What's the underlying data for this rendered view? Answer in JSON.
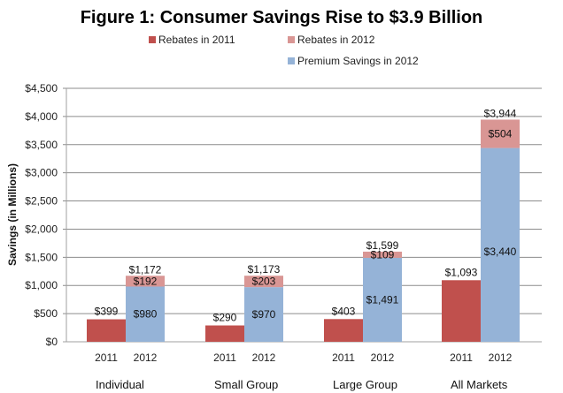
{
  "chart_data": {
    "type": "bar",
    "stacked": true,
    "title": "Figure 1: Consumer Savings Rise to $3.9 Billion",
    "xlabel": "",
    "ylabel": "Savings (in Millions)",
    "ylim": [
      0,
      4500
    ],
    "yticks": [
      0,
      500,
      1000,
      1500,
      2000,
      2500,
      3000,
      3500,
      4000,
      4500
    ],
    "ytick_labels": [
      "$0",
      "$500",
      "$1,000",
      "$1,500",
      "$2,000",
      "$2,500",
      "$3,000",
      "$3,500",
      "$4,000",
      "$4,500"
    ],
    "grid": true,
    "legend_position": "top",
    "categories": [
      "Individual",
      "Small Group",
      "Large Group",
      "All Markets"
    ],
    "sub_categories": [
      "2011",
      "2012"
    ],
    "colors": {
      "Rebates in 2011": "#c0504d",
      "Rebates in 2012": "#d99694",
      "Premium Savings in 2012": "#95b3d7"
    },
    "series": [
      {
        "name": "Rebates in 2011",
        "year": "2011",
        "values": [
          399,
          290,
          403,
          1093
        ],
        "labels": [
          "$399",
          "$290",
          "$403",
          "$1,093"
        ]
      },
      {
        "name": "Premium Savings in 2012",
        "year": "2012",
        "values": [
          980,
          970,
          1491,
          3440
        ],
        "labels": [
          "$980",
          "$970",
          "$1,491",
          "$3,440"
        ]
      },
      {
        "name": "Rebates in 2012",
        "year": "2012",
        "values": [
          192,
          203,
          109,
          504
        ],
        "labels": [
          "$192",
          "$203",
          "$109",
          "$504"
        ]
      }
    ],
    "totals_2012": [
      1172,
      1173,
      1599,
      3944
    ],
    "totals_2012_labels": [
      "$1,172",
      "$1,173",
      "$1,599",
      "$3,944"
    ],
    "legend": [
      {
        "name": "Rebates in 2011",
        "color": "#c0504d"
      },
      {
        "name": "Rebates in 2012",
        "color": "#d99694"
      },
      {
        "name": "Premium Savings in 2012",
        "color": "#95b3d7"
      }
    ]
  }
}
